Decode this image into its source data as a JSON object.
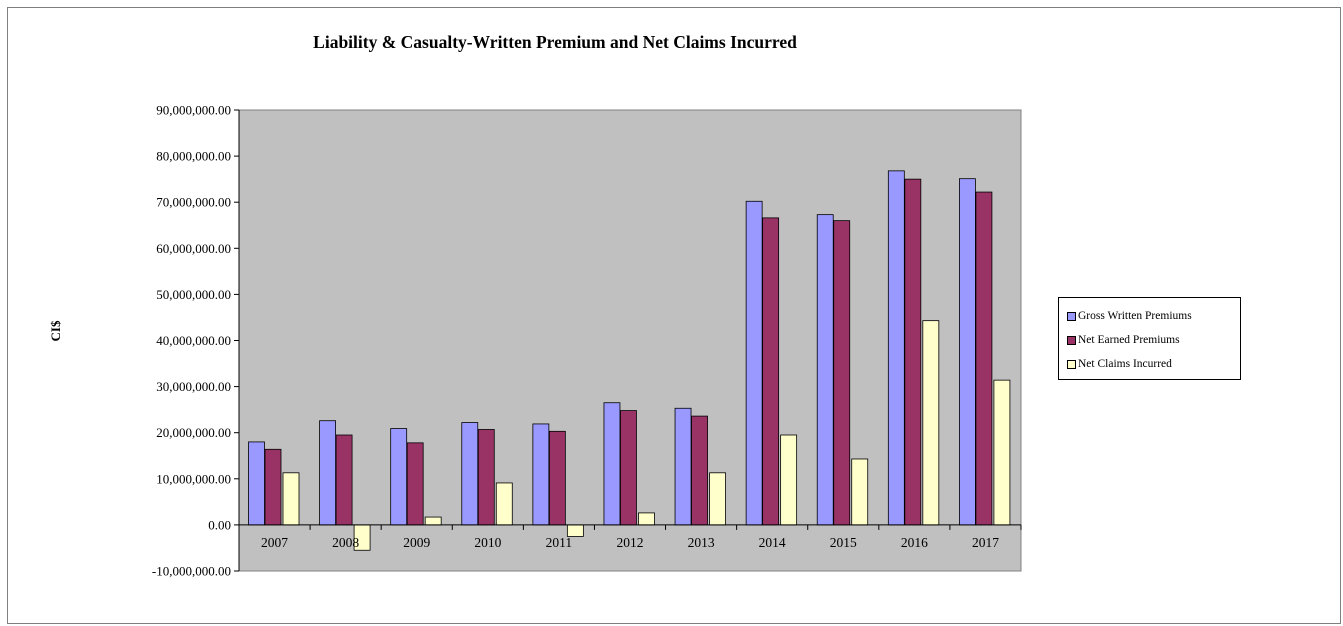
{
  "chart_data": {
    "type": "bar",
    "title": "Liability & Casualty-Written Premium and Net Claims Incurred",
    "xlabel": "",
    "ylabel": "CI$",
    "ylim": [
      -10000000,
      90000000
    ],
    "yticks": [
      90000000,
      80000000,
      70000000,
      60000000,
      50000000,
      40000000,
      30000000,
      20000000,
      10000000,
      0,
      -10000000
    ],
    "ytick_labels": [
      "90,000,000.00",
      "80,000,000.00",
      "70,000,000.00",
      "60,000,000.00",
      "50,000,000.00",
      "40,000,000.00",
      "30,000,000.00",
      "20,000,000.00",
      "10,000,000.00",
      "0.00",
      "-10,000,000.00"
    ],
    "categories": [
      "2007",
      "2008",
      "2009",
      "2010",
      "2011",
      "2012",
      "2013",
      "2014",
      "2015",
      "2016",
      "2017"
    ],
    "series": [
      {
        "name": "Gross Written Premiums",
        "color": "#9999ff",
        "values": [
          18000000,
          22600000,
          20900000,
          22200000,
          21900000,
          26500000,
          25300000,
          70200000,
          67300000,
          76800000,
          75100000
        ]
      },
      {
        "name": "Net Earned Premiums",
        "color": "#993366",
        "values": [
          16400000,
          19500000,
          17800000,
          20700000,
          20300000,
          24800000,
          23600000,
          66600000,
          66000000,
          75000000,
          72200000
        ]
      },
      {
        "name": "Net Claims Incurred",
        "color": "#ffffcc",
        "values": [
          11300000,
          -5500000,
          1700000,
          9100000,
          -2500000,
          2600000,
          11300000,
          19500000,
          14300000,
          44300000,
          31400000
        ]
      }
    ],
    "plot_background": "#c0c0c0",
    "grid": false,
    "legend_position": "right"
  }
}
